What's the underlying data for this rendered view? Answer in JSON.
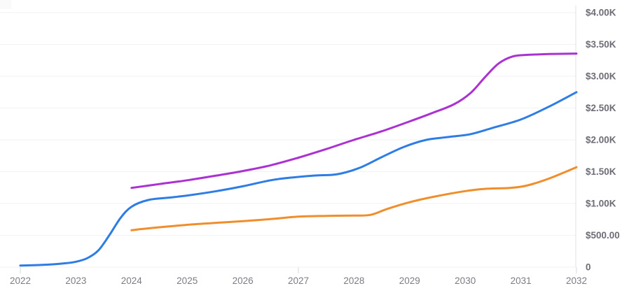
{
  "chart_data": {
    "type": "line",
    "title": "",
    "legend": {
      "visible": false
    },
    "grid": {
      "horizontal": true,
      "vertical": false
    },
    "x_axis": {
      "label": "",
      "tick_labels": [
        "2022",
        "2023",
        "2024",
        "2025",
        "2026",
        "2027",
        "2028",
        "2029",
        "2030",
        "2031",
        "2032"
      ],
      "tick_values": [
        2022,
        2023,
        2024,
        2025,
        2026,
        2027,
        2028,
        2029,
        2030,
        2031,
        2032
      ],
      "range": [
        2022,
        2032
      ],
      "major_tick_marks": [
        2022,
        2027,
        2032
      ]
    },
    "y_axis": {
      "label": "",
      "side": "right",
      "tick_labels": [
        "0",
        "$500.00",
        "$1.00K",
        "$1.50K",
        "$2.00K",
        "$2.50K",
        "$3.00K",
        "$3.50K",
        "$4.00K"
      ],
      "tick_values": [
        0,
        500,
        1000,
        1500,
        2000,
        2500,
        3000,
        3500,
        4000
      ],
      "range": [
        0,
        4000
      ]
    },
    "series": [
      {
        "name": "blue-series",
        "color": "#2e7de5",
        "points": [
          [
            2022.0,
            25
          ],
          [
            2022.4,
            35
          ],
          [
            2022.8,
            60
          ],
          [
            2023.0,
            85
          ],
          [
            2023.2,
            140
          ],
          [
            2023.4,
            260
          ],
          [
            2023.6,
            500
          ],
          [
            2023.8,
            770
          ],
          [
            2024.0,
            950
          ],
          [
            2024.3,
            1055
          ],
          [
            2024.65,
            1090
          ],
          [
            2025.0,
            1125
          ],
          [
            2025.5,
            1190
          ],
          [
            2026.0,
            1270
          ],
          [
            2026.5,
            1365
          ],
          [
            2026.9,
            1410
          ],
          [
            2027.3,
            1440
          ],
          [
            2027.7,
            1460
          ],
          [
            2028.1,
            1560
          ],
          [
            2028.5,
            1730
          ],
          [
            2028.9,
            1890
          ],
          [
            2029.3,
            2000
          ],
          [
            2029.7,
            2045
          ],
          [
            2030.1,
            2090
          ],
          [
            2030.5,
            2190
          ],
          [
            2031.0,
            2320
          ],
          [
            2031.5,
            2520
          ],
          [
            2032.0,
            2750
          ]
        ]
      },
      {
        "name": "orange-series",
        "color": "#ef8e2b",
        "points": [
          [
            2024.0,
            580
          ],
          [
            2024.4,
            618
          ],
          [
            2024.8,
            650
          ],
          [
            2025.2,
            678
          ],
          [
            2025.6,
            700
          ],
          [
            2026.0,
            722
          ],
          [
            2026.5,
            755
          ],
          [
            2027.0,
            793
          ],
          [
            2027.5,
            805
          ],
          [
            2028.0,
            810
          ],
          [
            2028.3,
            822
          ],
          [
            2028.6,
            915
          ],
          [
            2029.0,
            1020
          ],
          [
            2029.4,
            1100
          ],
          [
            2030.0,
            1195
          ],
          [
            2030.35,
            1230
          ],
          [
            2030.8,
            1245
          ],
          [
            2031.1,
            1280
          ],
          [
            2031.5,
            1390
          ],
          [
            2032.0,
            1570
          ]
        ]
      },
      {
        "name": "magenta-series",
        "color": "#ab32d2",
        "points": [
          [
            2024.0,
            1245
          ],
          [
            2024.5,
            1305
          ],
          [
            2025.0,
            1365
          ],
          [
            2025.5,
            1435
          ],
          [
            2026.0,
            1510
          ],
          [
            2026.5,
            1600
          ],
          [
            2027.0,
            1720
          ],
          [
            2027.5,
            1855
          ],
          [
            2028.0,
            2000
          ],
          [
            2028.5,
            2135
          ],
          [
            2029.0,
            2290
          ],
          [
            2029.4,
            2420
          ],
          [
            2029.8,
            2560
          ],
          [
            2030.1,
            2740
          ],
          [
            2030.35,
            2980
          ],
          [
            2030.6,
            3200
          ],
          [
            2030.85,
            3310
          ],
          [
            2031.1,
            3335
          ],
          [
            2031.5,
            3348
          ],
          [
            2032.0,
            3356
          ]
        ]
      }
    ]
  },
  "style": {
    "background": "#ffffff",
    "grid_color": "#f2f2f5",
    "axis_line_color": "#e0e2e9",
    "tick_color": "#d9d9e1",
    "y_label_color": "#6d6d78",
    "x_label_color": "#7c7c86",
    "line_width": 3
  }
}
